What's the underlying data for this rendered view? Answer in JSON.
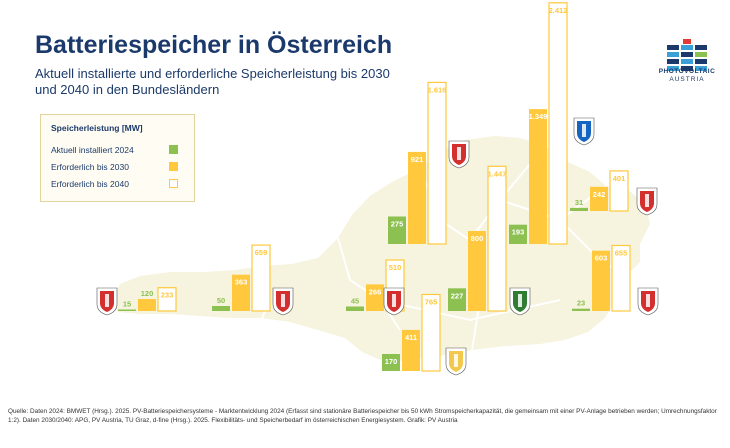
{
  "title": "Batteriespeicher in Österreich",
  "subtitle": "Aktuell installierte und erforderliche Speicherleistung bis 2030 und 2040 in den Bundesländern",
  "logo": {
    "line1": "PHOTOVOLTAIC",
    "line2": "AUSTRIA"
  },
  "legend": {
    "title": "Speicherleistung [MW]",
    "items": [
      "Aktuell installiert 2024",
      "Erforderlich bis 2030",
      "Erforderlich bis 2040"
    ]
  },
  "source": "Quelle: Daten 2024: BMWET (Hrsg.). 2025. PV-Batteriespeichersysteme - Marktentwicklung 2024 (Erfasst sind stationäre Batteriespeicher bis 50 kWh Stromspeicherkapazität, die gemeinsam mit einer PV-Anlage betrieben werden; Umrechnungsfaktor 1:2). Daten 2030/2040: APG, PV Austria, TU Graz, d-fine (Hrsg.). 2025. Flexibilitäts- und Speicherbedarf im österreichischen Energiesystem. Grafik: PV Austria",
  "colors": {
    "installed": "#8cc152",
    "y2030": "#ffc83d",
    "y2040_border": "#ffc83d",
    "map": "#f6f3de",
    "text": "#1b3a6b"
  },
  "chart_data": {
    "type": "bar",
    "title": "Batteriespeicher in Österreich",
    "unit": "MW",
    "series_names": [
      "Aktuell installiert 2024",
      "Erforderlich bis 2030",
      "Erforderlich bis 2040"
    ],
    "regions": [
      {
        "name": "Vorarlberg",
        "flag": "vorarlberg-flag-icon",
        "values": [
          15,
          120,
          233
        ],
        "value_labels": [
          "15",
          "120",
          "233"
        ]
      },
      {
        "name": "Tirol",
        "flag": "tirol-flag-icon",
        "values": [
          50,
          363,
          659
        ],
        "value_labels": [
          "50",
          "363",
          "659"
        ]
      },
      {
        "name": "Salzburg",
        "flag": "salzburg-flag-icon",
        "values": [
          45,
          266,
          510
        ],
        "value_labels": [
          "45",
          "266",
          "510"
        ]
      },
      {
        "name": "Oberösterreich",
        "flag": "oberoesterreich-flag-icon",
        "values": [
          275,
          921,
          1616
        ],
        "value_labels": [
          "275",
          "921",
          "1.616"
        ]
      },
      {
        "name": "Kärnten",
        "flag": "kaernten-flag-icon",
        "values": [
          170,
          411,
          765
        ],
        "value_labels": [
          "170",
          "411",
          "765"
        ]
      },
      {
        "name": "Steiermark",
        "flag": "steiermark-flag-icon",
        "values": [
          227,
          800,
          1447
        ],
        "value_labels": [
          "227",
          "800",
          "1.447"
        ]
      },
      {
        "name": "Niederösterreich",
        "flag": "niederoesterreich-flag-icon",
        "values": [
          193,
          1349,
          2412
        ],
        "value_labels": [
          "193",
          "1.349",
          "2.412"
        ]
      },
      {
        "name": "Wien",
        "flag": "wien-flag-icon",
        "values": [
          31,
          242,
          401
        ],
        "value_labels": [
          "31",
          "242",
          "401"
        ]
      },
      {
        "name": "Burgenland",
        "flag": "burgenland-flag-icon",
        "values": [
          23,
          603,
          655
        ],
        "value_labels": [
          "23",
          "603",
          "655"
        ]
      }
    ]
  }
}
